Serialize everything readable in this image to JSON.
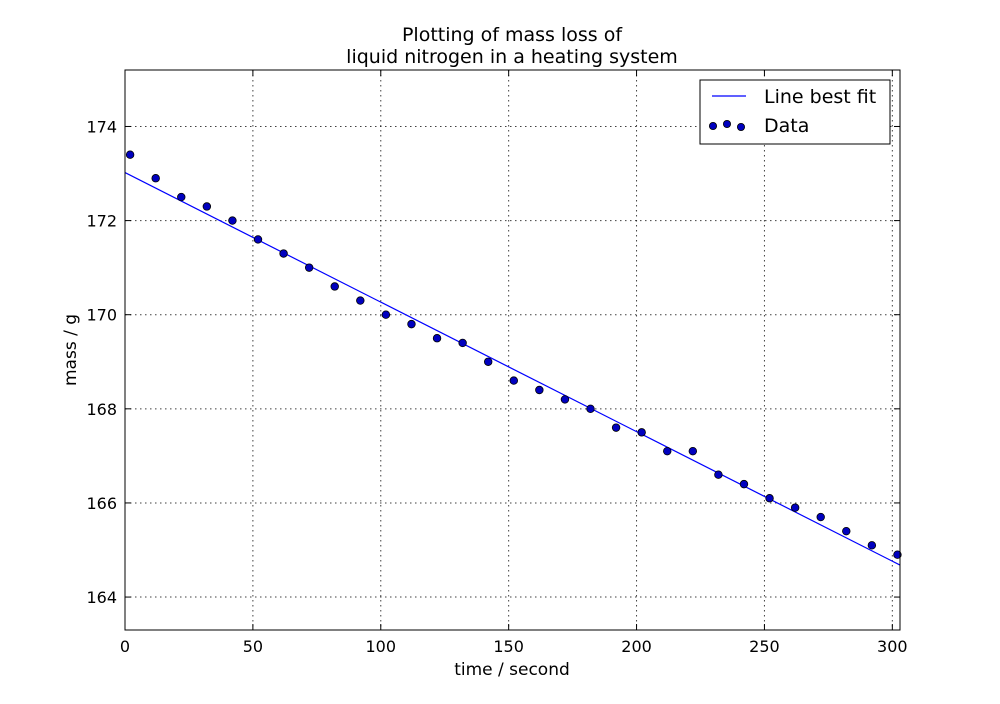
{
  "chart_data": {
    "type": "scatter",
    "title": [
      "Plotting of mass loss of",
      "liquid nitrogen in a heating system"
    ],
    "xlabel": "time / second",
    "ylabel": "mass / g",
    "xlim": [
      0,
      303
    ],
    "ylim": [
      163.3,
      175.2
    ],
    "xticks": [
      0,
      50,
      100,
      150,
      200,
      250,
      300
    ],
    "yticks": [
      164,
      166,
      168,
      170,
      172,
      174
    ],
    "grid": true,
    "legend_position": "top-right",
    "series": [
      {
        "name": "Line best fit",
        "kind": "line",
        "color": "#0000ff",
        "x": [
          0,
          303
        ],
        "y": [
          173.02,
          164.68
        ]
      },
      {
        "name": "Data",
        "kind": "scatter",
        "color": "#0000bf",
        "x": [
          2,
          12,
          22,
          32,
          42,
          52,
          62,
          72,
          82,
          92,
          102,
          112,
          122,
          132,
          142,
          152,
          162,
          172,
          182,
          192,
          202,
          212,
          222,
          232,
          242,
          252,
          262,
          272,
          282,
          292,
          302
        ],
        "y": [
          173.4,
          172.9,
          172.5,
          172.3,
          172.0,
          171.6,
          171.3,
          171.0,
          170.6,
          170.3,
          170.0,
          169.8,
          169.5,
          169.4,
          169.0,
          168.6,
          168.4,
          168.2,
          168.0,
          167.6,
          167.5,
          167.1,
          167.1,
          166.6,
          166.4,
          166.1,
          165.9,
          165.7,
          165.4,
          165.1,
          164.9
        ]
      }
    ]
  }
}
